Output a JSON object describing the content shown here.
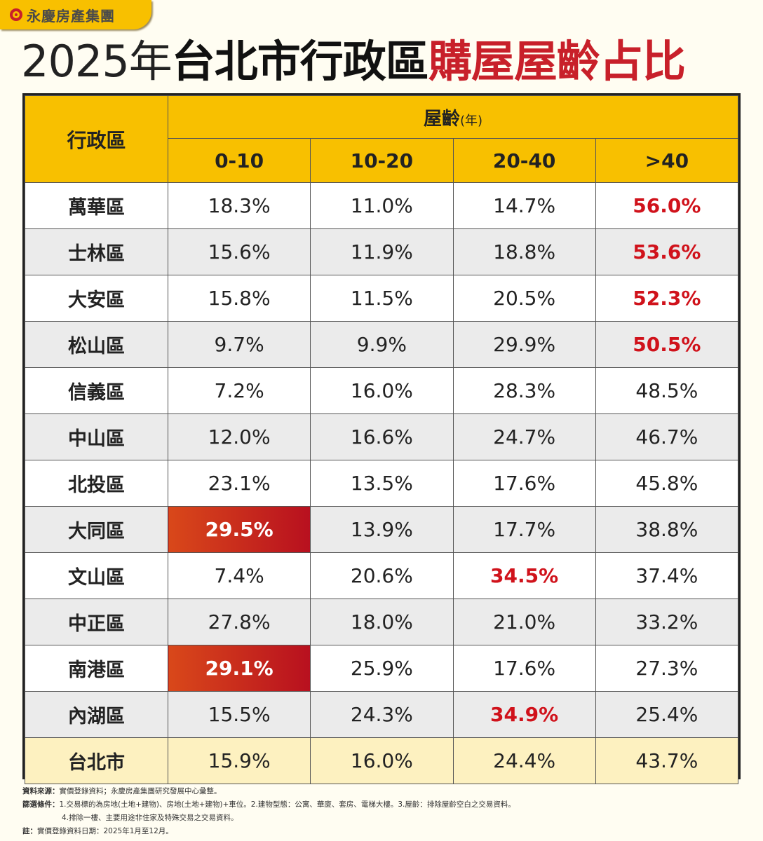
{
  "brand": {
    "name": "永慶房產集團",
    "color": "#c8202a",
    "accent": "#f8c000"
  },
  "title": {
    "year": "2025年",
    "black": "台北市行政區",
    "red": "購屋屋齡占比"
  },
  "chart_data": {
    "type": "table",
    "row_header": "行政區",
    "group_header": "屋齡",
    "group_unit": "(年)",
    "columns": [
      "0-10",
      "10-20",
      "20-40",
      ">40"
    ],
    "rows": [
      {
        "district": "萬華區",
        "values": [
          "18.3%",
          "11.0%",
          "14.7%",
          "56.0%"
        ],
        "highlight": [
          3
        ]
      },
      {
        "district": "士林區",
        "values": [
          "15.6%",
          "11.9%",
          "18.8%",
          "53.6%"
        ],
        "highlight": [
          3
        ]
      },
      {
        "district": "大安區",
        "values": [
          "15.8%",
          "11.5%",
          "20.5%",
          "52.3%"
        ],
        "highlight": [
          3
        ]
      },
      {
        "district": "松山區",
        "values": [
          "9.7%",
          "9.9%",
          "29.9%",
          "50.5%"
        ],
        "highlight": [
          3
        ]
      },
      {
        "district": "信義區",
        "values": [
          "7.2%",
          "16.0%",
          "28.3%",
          "48.5%"
        ],
        "highlight": []
      },
      {
        "district": "中山區",
        "values": [
          "12.0%",
          "16.6%",
          "24.7%",
          "46.7%"
        ],
        "highlight": []
      },
      {
        "district": "北投區",
        "values": [
          "23.1%",
          "13.5%",
          "17.6%",
          "45.8%"
        ],
        "highlight": []
      },
      {
        "district": "大同區",
        "values": [
          "29.5%",
          "13.9%",
          "17.7%",
          "38.8%"
        ],
        "highlight_fill": [
          0
        ]
      },
      {
        "district": "文山區",
        "values": [
          "7.4%",
          "20.6%",
          "34.5%",
          "37.4%"
        ],
        "highlight": [
          2
        ]
      },
      {
        "district": "中正區",
        "values": [
          "27.8%",
          "18.0%",
          "21.0%",
          "33.2%"
        ],
        "highlight": []
      },
      {
        "district": "南港區",
        "values": [
          "29.1%",
          "25.9%",
          "17.6%",
          "27.3%"
        ],
        "highlight_fill": [
          0
        ]
      },
      {
        "district": "內湖區",
        "values": [
          "15.5%",
          "24.3%",
          "34.9%",
          "25.4%"
        ],
        "highlight": [
          2
        ]
      }
    ],
    "total": {
      "district": "台北市",
      "values": [
        "15.9%",
        "16.0%",
        "24.4%",
        "43.7%"
      ]
    }
  },
  "notes": {
    "source_label": "資料來源：",
    "source": "實價登錄資料；永慶房產集團研究發展中心彙整。",
    "filter_label": "篩選條件：",
    "filter1": "1.交易標的為房地(土地+建物)、房地(土地+建物)+車位。2.建物型態：公寓、華廈、套房、電梯大樓。3.屋齡：排除屋齡空白之交易資料。",
    "filter2": "4.排除一樓、主要用途非住家及特殊交易之交易資料。",
    "note_label": "註：",
    "note": "實價登錄資料日期：2025年1月至12月。"
  }
}
